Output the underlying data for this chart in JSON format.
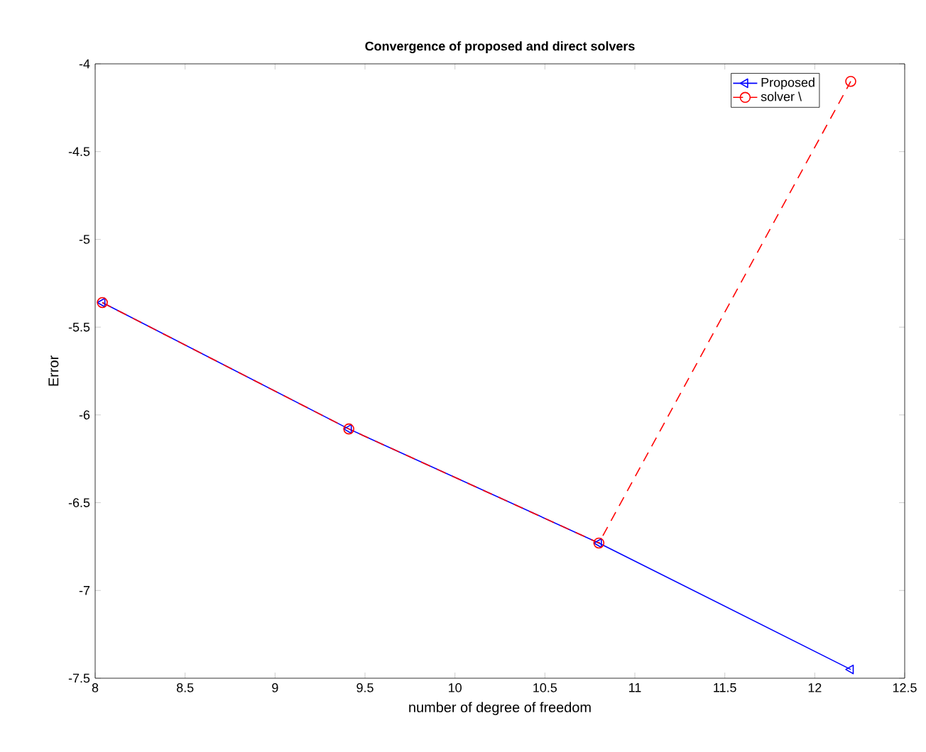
{
  "chart_data": {
    "type": "line",
    "title": "Convergence of proposed and direct solvers",
    "xlabel": "number of degree of freedom",
    "ylabel": "Error",
    "x": [
      8.04,
      9.41,
      10.8,
      12.2
    ],
    "series": [
      {
        "name": "Proposed",
        "color": "#0000ff",
        "values": [
          -5.36,
          -6.08,
          -6.73,
          -7.45
        ],
        "marker": "triangle",
        "line_style": "solid"
      },
      {
        "name": "solver \\",
        "color": "#ff0000",
        "values": [
          -5.36,
          -6.08,
          -6.73,
          -4.1
        ],
        "marker": "circle",
        "line_style": "dashed"
      }
    ],
    "xlim": [
      8,
      12.5
    ],
    "ylim": [
      -7.5,
      -4
    ],
    "xticks": [
      8,
      8.5,
      9,
      9.5,
      10,
      10.5,
      11,
      11.5,
      12,
      12.5
    ],
    "yticks": [
      -7.5,
      -7,
      -6.5,
      -6,
      -5.5,
      -5,
      -4.5,
      -4
    ],
    "grid": false,
    "legend": "top right"
  }
}
